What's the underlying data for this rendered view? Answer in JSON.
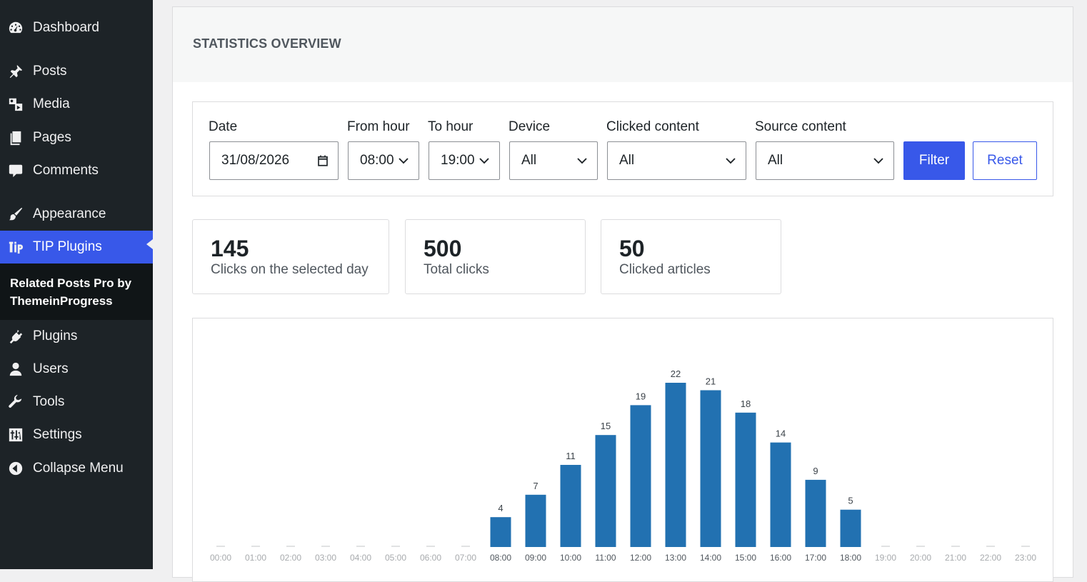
{
  "sidebar": {
    "items": [
      {
        "label": "Dashboard",
        "icon": "dashboard-icon"
      },
      {
        "label": "Posts",
        "icon": "pin-icon"
      },
      {
        "label": "Media",
        "icon": "media-icon"
      },
      {
        "label": "Pages",
        "icon": "pages-icon"
      },
      {
        "label": "Comments",
        "icon": "comment-icon"
      },
      {
        "label": "Appearance",
        "icon": "paintbrush-icon"
      },
      {
        "label": "TIP Plugins",
        "icon": "tip-logo-icon"
      },
      {
        "label": "Plugins",
        "icon": "plug-icon"
      },
      {
        "label": "Users",
        "icon": "user-icon"
      },
      {
        "label": "Tools",
        "icon": "wrench-icon"
      },
      {
        "label": "Settings",
        "icon": "sliders-icon"
      },
      {
        "label": "Collapse Menu",
        "icon": "collapse-arrow-icon"
      }
    ],
    "submenu_label": "Related Posts Pro by ThemeinProgress"
  },
  "panel": {
    "title": "STATISTICS OVERVIEW"
  },
  "filters": {
    "date_label": "Date",
    "date_value": "31/08/2026",
    "from_label": "From hour",
    "from_value": "08:00",
    "to_label": "To hour",
    "to_value": "19:00",
    "device_label": "Device",
    "device_value": "All",
    "clicked_label": "Clicked content",
    "clicked_value": "All",
    "source_label": "Source content",
    "source_value": "All",
    "filter_button": "Filter",
    "reset_button": "Reset"
  },
  "stats": [
    {
      "value": "145",
      "label": "Clicks on the selected day"
    },
    {
      "value": "500",
      "label": "Total clicks"
    },
    {
      "value": "50",
      "label": "Clicked articles"
    }
  ],
  "colors": {
    "bar": "#2271b1",
    "accent": "#3858e9",
    "sidebar_bg": "#1d2327"
  },
  "chart_data": {
    "type": "bar",
    "categories": [
      "00:00",
      "01:00",
      "02:00",
      "03:00",
      "04:00",
      "05:00",
      "06:00",
      "07:00",
      "08:00",
      "09:00",
      "10:00",
      "11:00",
      "12:00",
      "13:00",
      "14:00",
      "15:00",
      "16:00",
      "17:00",
      "18:00",
      "19:00",
      "20:00",
      "21:00",
      "22:00",
      "23:00"
    ],
    "values": [
      0,
      0,
      0,
      0,
      0,
      0,
      0,
      0,
      4,
      7,
      11,
      15,
      19,
      22,
      21,
      18,
      14,
      9,
      5,
      0,
      0,
      0,
      0,
      0
    ],
    "data_labels": [
      "",
      "",
      "",
      "",
      "",
      "",
      "",
      "",
      "4",
      "7",
      "11",
      "15",
      "19",
      "22",
      "21",
      "18",
      "14",
      "9",
      "5",
      "",
      "",
      "",
      "",
      ""
    ],
    "title": "",
    "xlabel": "",
    "ylabel": "",
    "ylim": [
      0,
      22
    ],
    "grid": false
  }
}
